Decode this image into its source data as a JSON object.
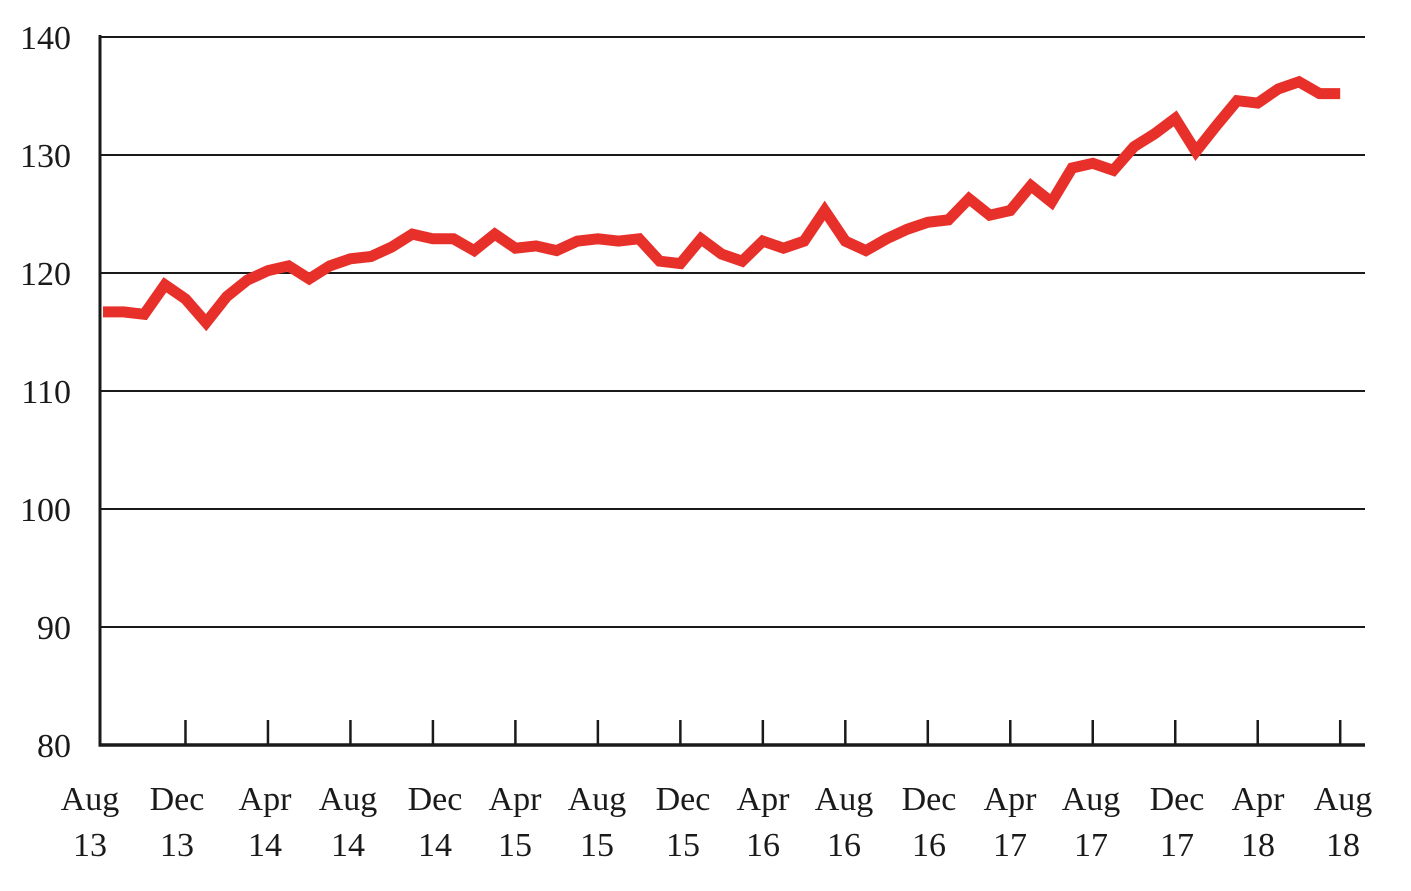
{
  "chart_data": {
    "type": "line",
    "title": "",
    "xlabel": "",
    "ylabel": "",
    "ylim": [
      80,
      140
    ],
    "yticks": [
      80,
      90,
      100,
      110,
      120,
      130,
      140
    ],
    "grid": true,
    "legend": "none",
    "line_color": "#e8302b",
    "x_tick_labels": [
      {
        "month": "Aug",
        "year": "13"
      },
      {
        "month": "Dec",
        "year": "13"
      },
      {
        "month": "Apr",
        "year": "14"
      },
      {
        "month": "Aug",
        "year": "14"
      },
      {
        "month": "Dec",
        "year": "14"
      },
      {
        "month": "Apr",
        "year": "15"
      },
      {
        "month": "Aug",
        "year": "15"
      },
      {
        "month": "Dec",
        "year": "15"
      },
      {
        "month": "Apr",
        "year": "16"
      },
      {
        "month": "Aug",
        "year": "16"
      },
      {
        "month": "Dec",
        "year": "16"
      },
      {
        "month": "Apr",
        "year": "17"
      },
      {
        "month": "Aug",
        "year": "17"
      },
      {
        "month": "Dec",
        "year": "17"
      },
      {
        "month": "Apr",
        "year": "18"
      },
      {
        "month": "Aug",
        "year": "18"
      }
    ],
    "series": [
      {
        "x": [
          "2013-08",
          "2013-09",
          "2013-10",
          "2013-11",
          "2013-12",
          "2014-01",
          "2014-02",
          "2014-03",
          "2014-04",
          "2014-05",
          "2014-06",
          "2014-07",
          "2014-08",
          "2014-09",
          "2014-10",
          "2014-11",
          "2014-12",
          "2015-01",
          "2015-02",
          "2015-03",
          "2015-04",
          "2015-05",
          "2015-06",
          "2015-07",
          "2015-08",
          "2015-09",
          "2015-10",
          "2015-11",
          "2015-12",
          "2016-01",
          "2016-02",
          "2016-03",
          "2016-04",
          "2016-05",
          "2016-06",
          "2016-07",
          "2016-08",
          "2016-09",
          "2016-10",
          "2016-11",
          "2016-12",
          "2017-01",
          "2017-02",
          "2017-03",
          "2017-04",
          "2017-05",
          "2017-06",
          "2017-07",
          "2017-08",
          "2017-09",
          "2017-10",
          "2017-11",
          "2017-12",
          "2018-01",
          "2018-02",
          "2018-03",
          "2018-04",
          "2018-05",
          "2018-06",
          "2018-07",
          "2018-08"
        ],
        "values": [
          116.7,
          116.7,
          116.5,
          119.0,
          117.8,
          115.8,
          118.0,
          119.4,
          120.2,
          120.6,
          119.5,
          120.6,
          121.2,
          121.4,
          122.2,
          123.3,
          122.9,
          122.9,
          121.9,
          123.3,
          122.1,
          122.3,
          121.9,
          122.7,
          122.9,
          122.7,
          122.9,
          121.0,
          120.8,
          122.9,
          121.6,
          121.0,
          122.7,
          122.1,
          122.7,
          125.3,
          122.7,
          121.9,
          122.9,
          123.7,
          124.3,
          124.5,
          126.3,
          124.9,
          125.3,
          127.4,
          126.0,
          128.9,
          129.3,
          128.7,
          130.7,
          131.8,
          133.1,
          130.3,
          132.5,
          134.6,
          134.4,
          135.6,
          136.2,
          135.2,
          135.2
        ]
      }
    ]
  }
}
